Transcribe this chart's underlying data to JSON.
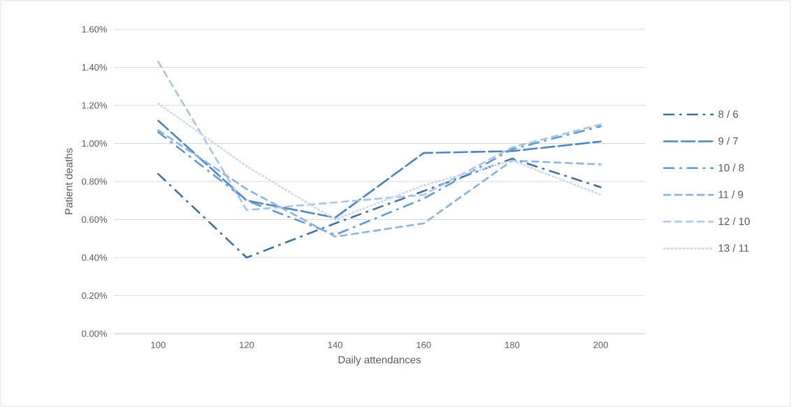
{
  "chart_data": {
    "type": "line",
    "xlabel": "Daily attendances",
    "ylabel": "Patient deaths",
    "categories": [
      "100",
      "120",
      "140",
      "160",
      "180",
      "200"
    ],
    "series": [
      {
        "name": "8 / 6",
        "color": "#41719c",
        "line_style": "dashdot",
        "values": [
          0.84,
          0.4,
          0.58,
          0.75,
          0.92,
          0.77
        ]
      },
      {
        "name": "9 / 7",
        "color": "#4a86c0",
        "line_style": "longdash",
        "values": [
          1.12,
          0.7,
          0.61,
          0.95,
          0.96,
          1.01
        ]
      },
      {
        "name": "10 / 8",
        "color": "#5b9bd5",
        "line_style": "dashdot",
        "values": [
          1.06,
          0.7,
          0.52,
          0.71,
          0.97,
          1.09
        ]
      },
      {
        "name": "11 / 9",
        "color": "#8cb3e0",
        "line_style": "dashed",
        "values": [
          1.07,
          0.76,
          0.51,
          0.58,
          0.91,
          0.89
        ]
      },
      {
        "name": "12 / 10",
        "color": "#a9c4e8",
        "line_style": "dashed",
        "values": [
          1.43,
          0.65,
          0.69,
          0.73,
          0.98,
          1.1
        ]
      },
      {
        "name": "13 / 11",
        "color": "#c9d9ef",
        "line_style": "dotted",
        "values": [
          1.21,
          0.88,
          0.6,
          0.78,
          0.91,
          0.73
        ]
      }
    ],
    "ylim": [
      0,
      1.6
    ],
    "yticks": [
      {
        "value": 0,
        "label": "0.00%"
      },
      {
        "value": 0.2,
        "label": "0.20%"
      },
      {
        "value": 0.4,
        "label": "0.40%"
      },
      {
        "value": 0.6,
        "label": "0.60%"
      },
      {
        "value": 0.8,
        "label": "0.80%"
      },
      {
        "value": 1.0,
        "label": "1.00%"
      },
      {
        "value": 1.2,
        "label": "1.20%"
      },
      {
        "value": 1.4,
        "label": "1.40%"
      },
      {
        "value": 1.6,
        "label": "1.60%"
      }
    ],
    "grid": "y",
    "legend": "right",
    "marker": "none"
  }
}
